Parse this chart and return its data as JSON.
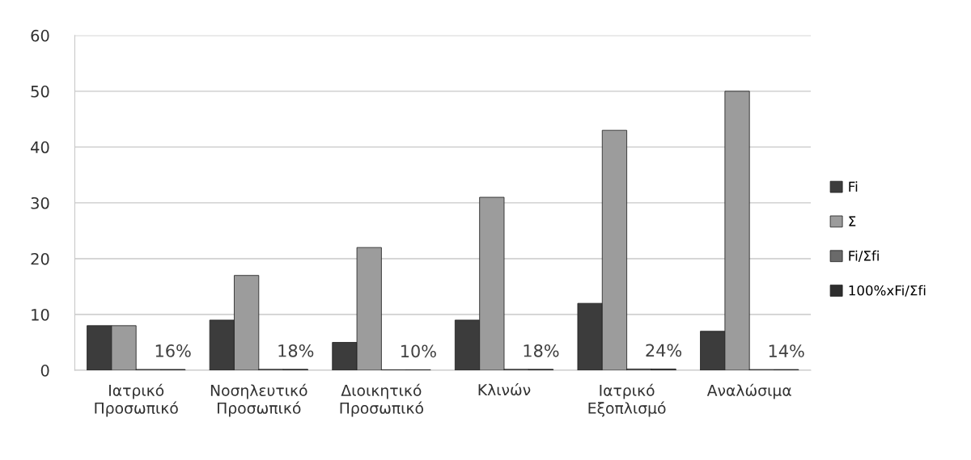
{
  "chart_data": {
    "type": "bar",
    "categories": [
      "Ιατρικό\nΠροσωπικό",
      "Νοσηλευτικό\nΠροσωπικό",
      "Διοικητικό\nΠροσωπικό",
      "Κλινών",
      "Ιατρικό\nΕξοπλισμό",
      "Αναλώσιμα"
    ],
    "series": [
      {
        "name": "Fi",
        "color": "#3c3c3c",
        "values": [
          8,
          9,
          5,
          9,
          12,
          7
        ]
      },
      {
        "name": "Σ",
        "color": "#9c9c9c",
        "values": [
          8,
          17,
          22,
          31,
          43,
          50
        ]
      },
      {
        "name": "Fi/Σfi",
        "color": "#6a6a6a",
        "values": [
          0.16,
          0.18,
          0.1,
          0.18,
          0.24,
          0.14
        ]
      },
      {
        "name": "100%xFi/Σfi",
        "color": "#2e2e2e",
        "values": [
          0.16,
          0.18,
          0.1,
          0.18,
          0.24,
          0.14
        ],
        "value_labels": [
          "16%",
          "18%",
          "10%",
          "18%",
          "24%",
          "14%"
        ]
      }
    ],
    "ylim": [
      0,
      60
    ],
    "yticks": [
      0,
      10,
      20,
      30,
      40,
      50,
      60
    ],
    "grid": "y",
    "legend": "right"
  }
}
